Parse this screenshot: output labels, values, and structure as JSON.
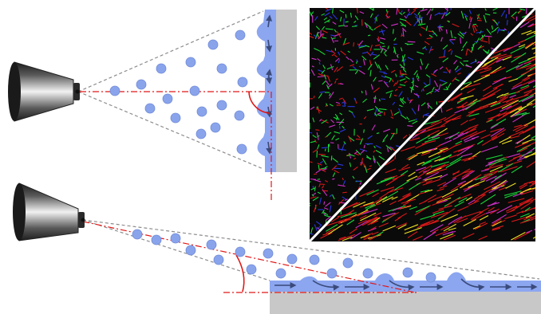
{
  "colors": {
    "background": "#ffffff",
    "droplet": "#8aa4ec",
    "droplet_stroke": "#6f8ad6",
    "liquid_film": "#8ca6f0",
    "substrate": "#c8c8c8",
    "cone_line": "#8c8c8c",
    "axis_line": "#e01818",
    "flow_arrow": "#3a4a7a",
    "microscopy_red": "#d81818",
    "microscopy_green": "#18d838",
    "microscopy_blue": "#2838e0",
    "microscopy_magenta": "#d030c8",
    "microscopy_yellow": "#f0e020"
  },
  "diagram": {
    "top_panel": {
      "name": "perpendicular-spray",
      "icon": "spray-nozzle-icon",
      "angle_deg": 90
    },
    "bottom_panel": {
      "name": "oblique-spray",
      "icon": "spray-nozzle-icon",
      "angle_deg": 25
    },
    "micrograph": {
      "name": "fluorescence-micrograph",
      "upper_left": "random-network",
      "lower_right": "aligned-fibers"
    }
  }
}
